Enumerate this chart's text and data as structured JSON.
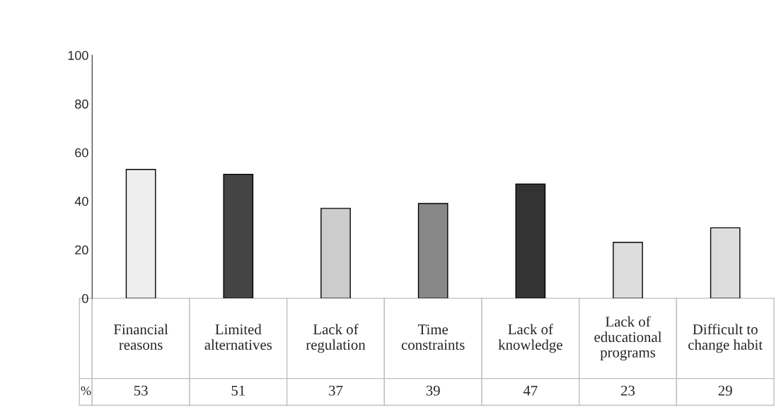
{
  "chart_data": {
    "type": "bar",
    "categories": [
      "Financial reasons",
      "Limited alternatives",
      "Lack of regulation",
      "Time constraints",
      "Lack of knowledge",
      "Lack of educational programs",
      "Difficult to change habit"
    ],
    "series": [
      {
        "name": "%",
        "colors": [
          "#eeeeee",
          "#444444",
          "#cccccc",
          "#888888",
          "#333333",
          "#dddddd",
          "#dddddd"
        ],
        "values": [
          53,
          51,
          37,
          39,
          47,
          23,
          29
        ]
      }
    ],
    "ylim": [
      0,
      100
    ],
    "yticks": [
      0,
      20,
      40,
      60,
      80,
      100
    ],
    "grid": false,
    "legend": false,
    "data_labels": true
  }
}
